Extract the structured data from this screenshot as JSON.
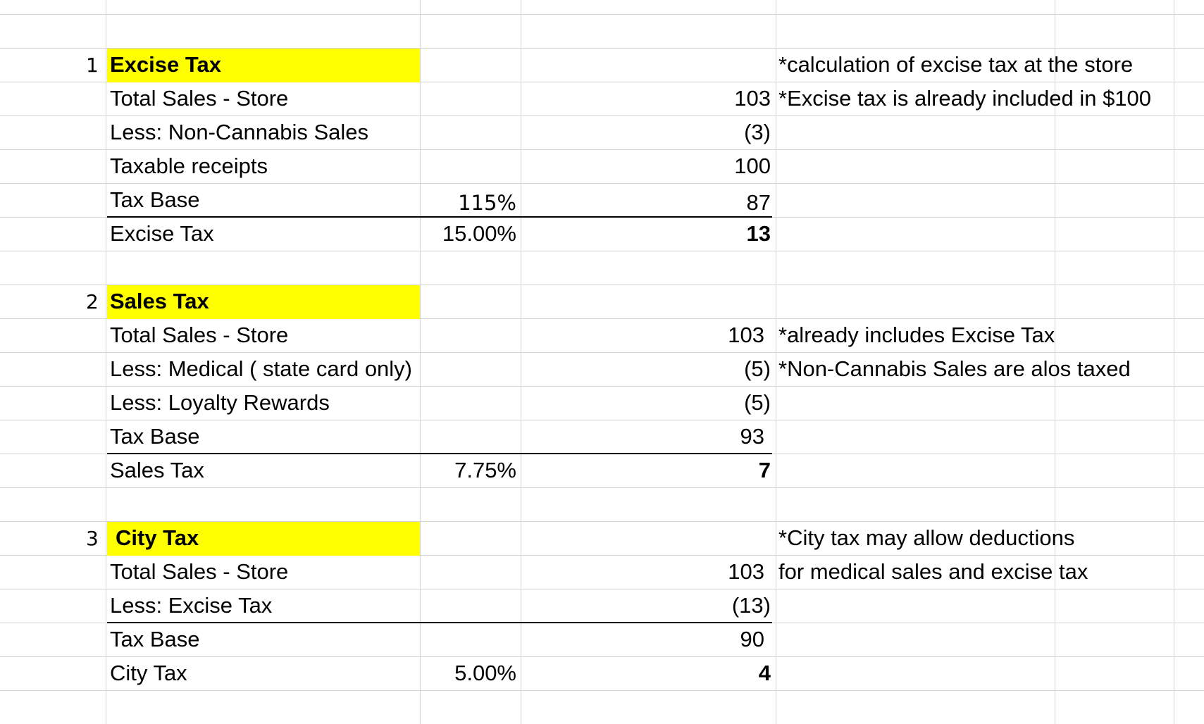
{
  "sections": [
    {
      "index": "1",
      "title": "Excise Tax",
      "note": "*calculation of excise tax at the store",
      "rows": [
        {
          "label": "Total Sales - Store",
          "rate": "",
          "value": "103",
          "note": "*Excise tax is already included in $100"
        },
        {
          "label": "Less: Non-Cannabis Sales",
          "rate": "",
          "value": "(3)",
          "note": ""
        },
        {
          "label": "Taxable receipts",
          "rate": "",
          "value": "100",
          "note": ""
        },
        {
          "label": "Tax Base",
          "rate": "115%",
          "value": "87",
          "note": ""
        },
        {
          "label": "Excise Tax",
          "rate": "15.00%",
          "value": "13",
          "note": ""
        }
      ]
    },
    {
      "index": "2",
      "title": "Sales Tax",
      "note": "",
      "rows": [
        {
          "label": "Total Sales - Store",
          "rate": "",
          "value": "103",
          "note": "*already includes Excise Tax"
        },
        {
          "label": "Less: Medical ( state card only)",
          "rate": "",
          "value": "(5)",
          "note": "*Non-Cannabis Sales are alos taxed"
        },
        {
          "label": "Less: Loyalty Rewards",
          "rate": "",
          "value": "(5)",
          "note": ""
        },
        {
          "label": "Tax Base",
          "rate": "",
          "value": "93",
          "note": ""
        },
        {
          "label": "Sales Tax",
          "rate": "7.75%",
          "value": "7",
          "note": ""
        }
      ]
    },
    {
      "index": "3",
      "title": "City Tax",
      "note": "*City tax may allow deductions",
      "rows": [
        {
          "label": "Total Sales - Store",
          "rate": "",
          "value": "103",
          "note": "for medical sales and excise tax"
        },
        {
          "label": "Less: Excise Tax",
          "rate": "",
          "value": "(13)",
          "note": ""
        },
        {
          "label": "Tax Base",
          "rate": "",
          "value": "90",
          "note": ""
        },
        {
          "label": "City Tax",
          "rate": "5.00%",
          "value": "4",
          "note": ""
        }
      ]
    }
  ],
  "colors": {
    "highlight": "#ffff00",
    "gridline": "#d4d4d4"
  }
}
